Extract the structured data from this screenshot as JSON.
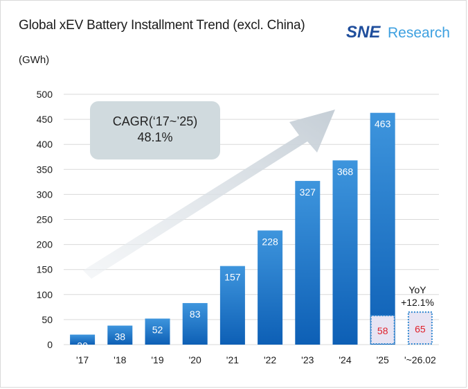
{
  "header": {
    "title": "Global xEV Battery Installment Trend (excl. China)",
    "unit": "(GWh)",
    "logo": {
      "part1": "SNE",
      "part2": "Research",
      "color_dark": "#1f4e9c",
      "color_light": "#3da0e0"
    }
  },
  "annotations": {
    "cagr_line1": "CAGR(‘17~’25)",
    "cagr_line2": "48.1%",
    "yoy_line1": "YoY",
    "yoy_line2": "+12.1%"
  },
  "colors": {
    "bar_top": "#3e95dd",
    "bar_bottom": "#0d5fb5",
    "partial_fill": "#e7e4f3",
    "partial_border": "#2f86d0",
    "value_partial": "#e0202a",
    "grid": "#d9d9d9"
  },
  "chart_data": {
    "type": "bar",
    "title": "Global xEV Battery Installment Trend (excl. China)",
    "ylabel": "(GWh)",
    "ylim": [
      0,
      500
    ],
    "yticks": [
      0,
      50,
      100,
      150,
      200,
      250,
      300,
      350,
      400,
      450,
      500
    ],
    "grid": true,
    "categories": [
      "'17",
      "'18",
      "'19",
      "'20",
      "'21",
      "'22",
      "'23",
      "'24",
      "'25",
      "'~26.02"
    ],
    "values": [
      20,
      38,
      52,
      83,
      157,
      228,
      327,
      368,
      463,
      null
    ],
    "value_labels": [
      "20",
      "38",
      "52",
      "83",
      "157",
      "228",
      "327",
      "368",
      "463",
      ""
    ],
    "partial_values": [
      null,
      null,
      null,
      null,
      null,
      null,
      null,
      null,
      58,
      65
    ],
    "partial_labels": [
      "",
      "",
      "",
      "",
      "",
      "",
      "",
      "",
      "58",
      "65"
    ]
  }
}
